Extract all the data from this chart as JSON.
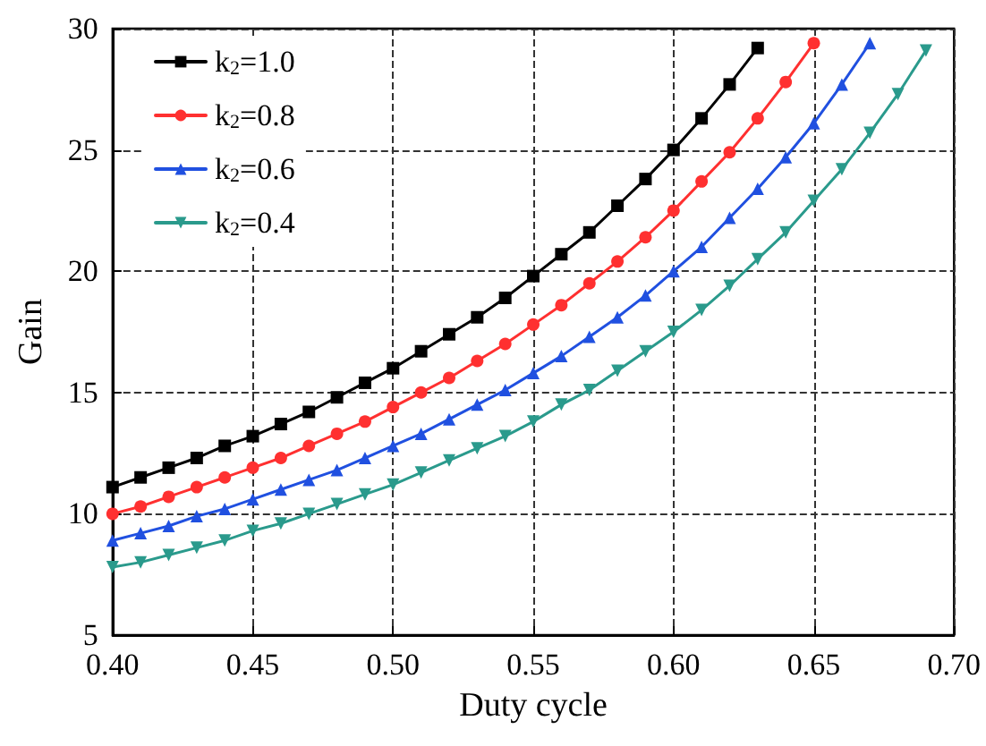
{
  "chart_data": {
    "type": "line",
    "xlabel": "Duty cycle",
    "ylabel": "Gain",
    "xlim": [
      0.4,
      0.7
    ],
    "xticks": [
      {
        "value": 0.4,
        "label": "0.40"
      },
      {
        "value": 0.45,
        "label": "0.45"
      },
      {
        "value": 0.5,
        "label": "0.50"
      },
      {
        "value": 0.55,
        "label": "0.55"
      },
      {
        "value": 0.6,
        "label": "0.60"
      },
      {
        "value": 0.65,
        "label": "0.65"
      },
      {
        "value": 0.7,
        "label": "0.70"
      }
    ],
    "ylim": [
      5,
      30
    ],
    "yticks": [
      5,
      10,
      15,
      20,
      25,
      30
    ],
    "grid": true,
    "legend": "top left",
    "line_style": "solid",
    "series": [
      {
        "name": "k$_{2}$=1.0",
        "color": "#000000",
        "marker": "square",
        "x": [
          0.4,
          0.41,
          0.42,
          0.43,
          0.44,
          0.45,
          0.46,
          0.47,
          0.48,
          0.49,
          0.5,
          0.51,
          0.52,
          0.53,
          0.54,
          0.55,
          0.56,
          0.57,
          0.58,
          0.59,
          0.6,
          0.61,
          0.62,
          0.63
        ],
        "values": [
          11.1,
          11.5,
          11.9,
          12.3,
          12.8,
          13.2,
          13.7,
          14.2,
          14.8,
          15.4,
          16.0,
          16.7,
          17.4,
          18.1,
          18.9,
          19.8,
          20.7,
          21.6,
          22.7,
          23.8,
          25.0,
          26.3,
          27.7,
          29.2
        ]
      },
      {
        "name": "k$_{2}$=0.8",
        "color": "#ff3030",
        "marker": "circle",
        "x": [
          0.4,
          0.41,
          0.42,
          0.43,
          0.44,
          0.45,
          0.46,
          0.47,
          0.48,
          0.49,
          0.5,
          0.51,
          0.52,
          0.53,
          0.54,
          0.55,
          0.56,
          0.57,
          0.58,
          0.59,
          0.6,
          0.61,
          0.62,
          0.63,
          0.64,
          0.65
        ],
        "values": [
          10.0,
          10.3,
          10.7,
          11.1,
          11.5,
          11.9,
          12.3,
          12.8,
          13.3,
          13.8,
          14.4,
          15.0,
          15.6,
          16.3,
          17.0,
          17.8,
          18.6,
          19.5,
          20.4,
          21.4,
          22.5,
          23.7,
          24.9,
          26.3,
          27.8,
          29.4
        ]
      },
      {
        "name": "k$_{2}$=0.6",
        "color": "#2050e0",
        "marker": "triangle",
        "x": [
          0.4,
          0.41,
          0.42,
          0.43,
          0.44,
          0.45,
          0.46,
          0.47,
          0.48,
          0.49,
          0.5,
          0.51,
          0.52,
          0.53,
          0.54,
          0.55,
          0.56,
          0.57,
          0.58,
          0.59,
          0.6,
          0.61,
          0.62,
          0.63,
          0.64,
          0.65,
          0.66,
          0.67
        ],
        "values": [
          8.9,
          9.2,
          9.5,
          9.9,
          10.2,
          10.6,
          11.0,
          11.4,
          11.8,
          12.3,
          12.8,
          13.3,
          13.9,
          14.5,
          15.1,
          15.8,
          16.5,
          17.3,
          18.1,
          19.0,
          20.0,
          21.0,
          22.2,
          23.4,
          24.7,
          26.1,
          27.7,
          29.4
        ]
      },
      {
        "name": "k$_{2}$=0.4",
        "color": "#2a9a8c",
        "marker": "triangle-down",
        "x": [
          0.4,
          0.41,
          0.42,
          0.43,
          0.44,
          0.45,
          0.46,
          0.47,
          0.48,
          0.49,
          0.5,
          0.51,
          0.52,
          0.53,
          0.54,
          0.55,
          0.56,
          0.57,
          0.58,
          0.59,
          0.6,
          0.61,
          0.62,
          0.63,
          0.64,
          0.65,
          0.66,
          0.67,
          0.68,
          0.69
        ],
        "values": [
          7.8,
          8.0,
          8.3,
          8.6,
          8.9,
          9.3,
          9.6,
          10.0,
          10.4,
          10.8,
          11.2,
          11.7,
          12.2,
          12.7,
          13.2,
          13.8,
          14.5,
          15.1,
          15.9,
          16.7,
          17.5,
          18.4,
          19.4,
          20.5,
          21.6,
          22.9,
          24.2,
          25.7,
          27.3,
          29.1
        ]
      }
    ]
  }
}
